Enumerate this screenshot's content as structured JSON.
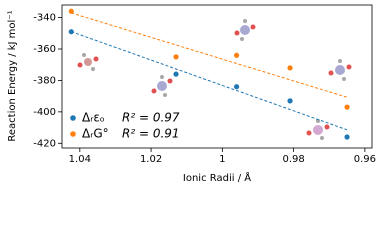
{
  "chart_data": {
    "type": "scatter",
    "x_label": "Ionic Radii / Å",
    "y_label": "Reaction Energy / kJ mol⁻¹",
    "x": [
      1.0424,
      1.013,
      0.996,
      0.981,
      0.965
    ],
    "series": [
      {
        "name": "Δᵣεₒ",
        "color": "#1f77b4",
        "values": [
          -349,
          -376,
          -384,
          -393,
          -416
        ],
        "annotation": "R² = 0.97"
      },
      {
        "name": "ΔᵣG°",
        "color": "#ff7f0e",
        "values": [
          -336,
          -365,
          -364,
          -372,
          -397
        ],
        "annotation": "R² = 0.91"
      }
    ],
    "xlim": [
      1.045,
      0.958
    ],
    "xticks": [
      1.04,
      1.02,
      1.0,
      0.98,
      0.96
    ],
    "ylim": [
      -423,
      -332
    ],
    "yticks": [
      -340,
      -360,
      -380,
      -400,
      -420
    ],
    "trendline": "dashed",
    "legend": "lower left"
  }
}
